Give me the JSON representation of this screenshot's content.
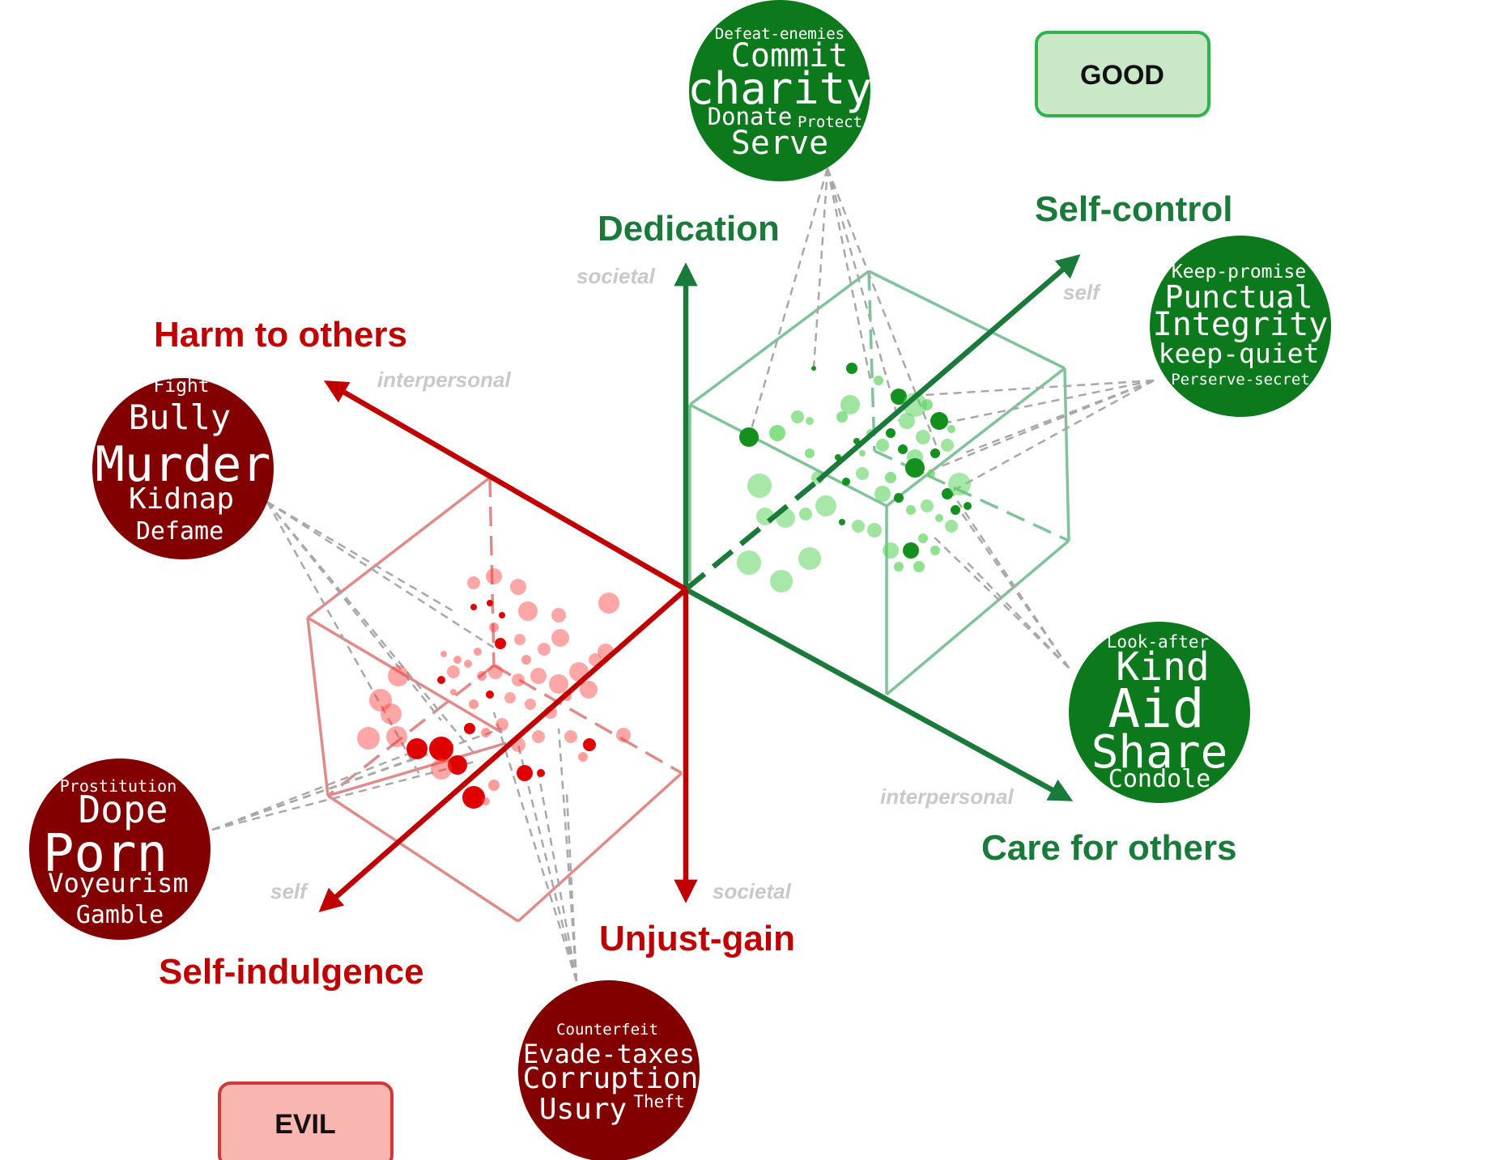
{
  "labels": {
    "good": "GOOD",
    "evil": "EVIL"
  },
  "axes": {
    "dedication": "Dedication",
    "self_control": "Self-control",
    "care_for_others": "Care for others",
    "harm_to_others": "Harm to others",
    "self_indulgence": "Self-indulgence",
    "unjust_gain": "Unjust-gain"
  },
  "scopes": {
    "societal_top": "societal",
    "self_top": "self",
    "interpersonal_top": "interpersonal",
    "interpersonal_bottom": "interpersonal",
    "self_bottom": "self",
    "societal_bottom": "societal"
  },
  "clouds": {
    "dedication": [
      "Defeat-enemies",
      "Commit",
      "charity",
      "Donate",
      "Protect",
      "Serve"
    ],
    "self_control": [
      "Keep-promise",
      "Punctual",
      "Integrity",
      "keep-quiet",
      "Perserve-secret"
    ],
    "care": [
      "Look-after",
      "Kind",
      "Aid",
      "Share",
      "Condole"
    ],
    "harm": [
      "Fight",
      "Bully",
      "Murder",
      "Kidnap",
      "Defame"
    ],
    "indulgence": [
      "Prostitution",
      "Dope",
      "Porn",
      "Voyeurism",
      "Gamble"
    ],
    "unjust": [
      "Counterfeit",
      "Evade-taxes",
      "Corruption",
      "Usury",
      "Theft"
    ]
  },
  "colors": {
    "good_dark": "#1a7a3a",
    "good_box": "#7fc39a",
    "good_cloud": "#0c7a1c",
    "good_label_fill": "#c8e8c8",
    "good_label_stroke": "#2fb34f",
    "evil_dark": "#c00000",
    "evil_box": "#e08a8a",
    "evil_cloud": "#820000",
    "evil_label_fill": "#f9b6b0",
    "evil_label_stroke": "#d0383a",
    "leader": "#a8a8a8"
  }
}
